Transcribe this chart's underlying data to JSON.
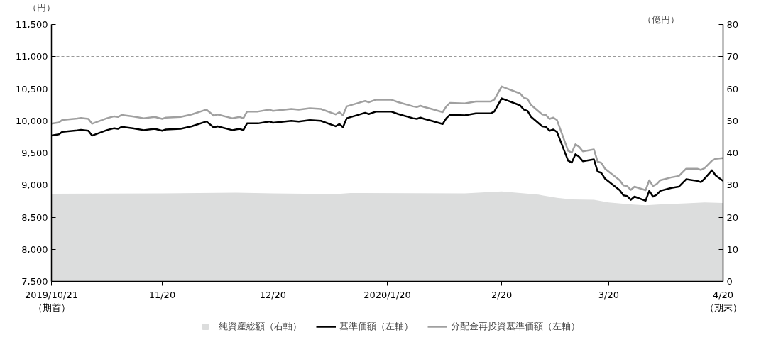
{
  "chart_data": {
    "type": "line",
    "ylabel": "（円）",
    "y2label": "（億円）",
    "x": [
      "2019-10-21",
      "2019-10-23",
      "2019-10-24",
      "2019-10-28",
      "2019-10-29",
      "2019-10-31",
      "2019-11-01",
      "2019-11-05",
      "2019-11-07",
      "2019-11-08",
      "2019-11-09",
      "2019-11-12",
      "2019-11-15",
      "2019-11-18",
      "2019-11-20",
      "2019-11-21",
      "2019-11-25",
      "2019-11-28",
      "2019-12-02",
      "2019-12-04",
      "2019-12-05",
      "2019-12-09",
      "2019-12-11",
      "2019-12-12",
      "2019-12-13",
      "2019-12-16",
      "2019-12-19",
      "2019-12-20",
      "2019-12-25",
      "2019-12-27",
      "2019-12-30",
      "2020-01-02",
      "2020-01-06",
      "2020-01-07",
      "2020-01-08",
      "2020-01-09",
      "2020-01-14",
      "2020-01-15",
      "2020-01-17",
      "2020-01-21",
      "2020-01-23",
      "2020-01-27",
      "2020-01-28",
      "2020-01-29",
      "2020-01-30",
      "2020-02-01",
      "2020-02-04",
      "2020-02-05",
      "2020-02-06",
      "2020-02-10",
      "2020-02-13",
      "2020-02-17",
      "2020-02-18",
      "2020-02-20",
      "2020-02-25",
      "2020-02-26",
      "2020-02-27",
      "2020-02-28",
      "2020-03-02",
      "2020-03-03",
      "2020-03-04",
      "2020-03-05",
      "2020-03-06",
      "2020-03-09",
      "2020-03-10",
      "2020-03-11",
      "2020-03-12",
      "2020-03-13",
      "2020-03-16",
      "2020-03-17",
      "2020-03-18",
      "2020-03-19",
      "2020-03-23",
      "2020-03-24",
      "2020-03-25",
      "2020-03-26",
      "2020-03-27",
      "2020-03-30",
      "2020-03-31",
      "2020-04-01",
      "2020-04-02",
      "2020-04-03",
      "2020-04-06",
      "2020-04-08",
      "2020-04-10",
      "2020-04-13",
      "2020-04-14",
      "2020-04-15",
      "2020-04-17",
      "2020-04-18",
      "2020-04-20"
    ],
    "series": [
      {
        "name": "純資産総額（右軸）",
        "type": "area",
        "axis": "y2",
        "color": "#dcdddd",
        "x": [
          "2019-10-21",
          "2019-11-20",
          "2019-12-10",
          "2019-12-20",
          "2020-01-06",
          "2020-01-10",
          "2020-02-10",
          "2020-02-20",
          "2020-03-01",
          "2020-03-06",
          "2020-03-10",
          "2020-03-16",
          "2020-03-20",
          "2020-03-26",
          "2020-03-30",
          "2020-04-03",
          "2020-04-10",
          "2020-04-15",
          "2020-04-20"
        ],
        "values": [
          27.3,
          27.4,
          27.6,
          27.4,
          27.2,
          27.5,
          27.4,
          28.0,
          27.0,
          26.0,
          25.5,
          25.4,
          24.6,
          24.0,
          23.7,
          24.0,
          24.3,
          24.6,
          24.4
        ]
      },
      {
        "name": "基準価額（左軸）",
        "color": "#000000",
        "values": [
          9770,
          9790,
          9830,
          9850,
          9860,
          9845,
          9770,
          9855,
          9885,
          9875,
          9905,
          9885,
          9855,
          9875,
          9845,
          9865,
          9875,
          9915,
          9990,
          9895,
          9915,
          9855,
          9875,
          9855,
          9960,
          9960,
          9990,
          9970,
          10000,
          9990,
          10010,
          10000,
          9915,
          9950,
          9900,
          10040,
          10125,
          10105,
          10145,
          10145,
          10105,
          10040,
          10030,
          10050,
          10030,
          10000,
          9950,
          10040,
          10095,
          10085,
          10115,
          10115,
          10145,
          10350,
          10240,
          10175,
          10155,
          10060,
          9915,
          9905,
          9845,
          9865,
          9825,
          9380,
          9350,
          9480,
          9440,
          9370,
          9400,
          9210,
          9190,
          9100,
          8920,
          8840,
          8830,
          8770,
          8820,
          8755,
          8910,
          8820,
          8850,
          8910,
          8955,
          8975,
          9090,
          9065,
          9045,
          9100,
          9230,
          9150,
          9065
        ]
      },
      {
        "name": "分配金再投資基準価額（左軸）",
        "color": "#a0a0a0",
        "values": [
          9955,
          9975,
          10015,
          10035,
          10045,
          10030,
          9955,
          10040,
          10070,
          10060,
          10090,
          10070,
          10040,
          10060,
          10030,
          10050,
          10060,
          10100,
          10175,
          10080,
          10100,
          10040,
          10060,
          10040,
          10145,
          10145,
          10175,
          10155,
          10185,
          10175,
          10195,
          10185,
          10100,
          10135,
          10085,
          10225,
          10310,
          10290,
          10330,
          10330,
          10290,
          10225,
          10215,
          10235,
          10215,
          10185,
          10135,
          10225,
          10280,
          10270,
          10300,
          10300,
          10330,
          10535,
          10425,
          10360,
          10340,
          10245,
          10100,
          10090,
          10030,
          10050,
          10010,
          9535,
          9505,
          9635,
          9595,
          9525,
          9555,
          9365,
          9345,
          9255,
          9075,
          8995,
          8985,
          8925,
          8975,
          8920,
          9075,
          8985,
          9015,
          9075,
          9120,
          9140,
          9255,
          9255,
          9235,
          9265,
          9380,
          9410,
          9420
        ]
      }
    ],
    "xlim": [
      "2019-10-21",
      "2020-04-20"
    ],
    "xticks": [
      {
        "value": "2019-10-21",
        "label": "2019/10/21\n（期首）"
      },
      {
        "value": "2019-11-20",
        "label": "11/20"
      },
      {
        "value": "2019-12-20",
        "label": "12/20"
      },
      {
        "value": "2020-01-20",
        "label": "2020/1/20"
      },
      {
        "value": "2020-02-20",
        "label": "2/20"
      },
      {
        "value": "2020-03-20",
        "label": "3/20"
      },
      {
        "value": "2020-04-20",
        "label": "4/20\n（期末）"
      }
    ],
    "ylim": [
      7500,
      11500
    ],
    "yticks": [
      {
        "value": 7500,
        "label": "7,500"
      },
      {
        "value": 8000,
        "label": "8,000"
      },
      {
        "value": 8500,
        "label": "8,500"
      },
      {
        "value": 9000,
        "label": "9,000"
      },
      {
        "value": 9500,
        "label": "9,500"
      },
      {
        "value": 10000,
        "label": "10,000"
      },
      {
        "value": 10500,
        "label": "10,500"
      },
      {
        "value": 11000,
        "label": "11,000"
      },
      {
        "value": 11500,
        "label": "11,500"
      }
    ],
    "y2lim": [
      0,
      80
    ],
    "y2ticks": [
      0,
      10,
      20,
      30,
      40,
      50,
      60,
      70,
      80
    ],
    "grid": "y",
    "legend": "bottom"
  }
}
